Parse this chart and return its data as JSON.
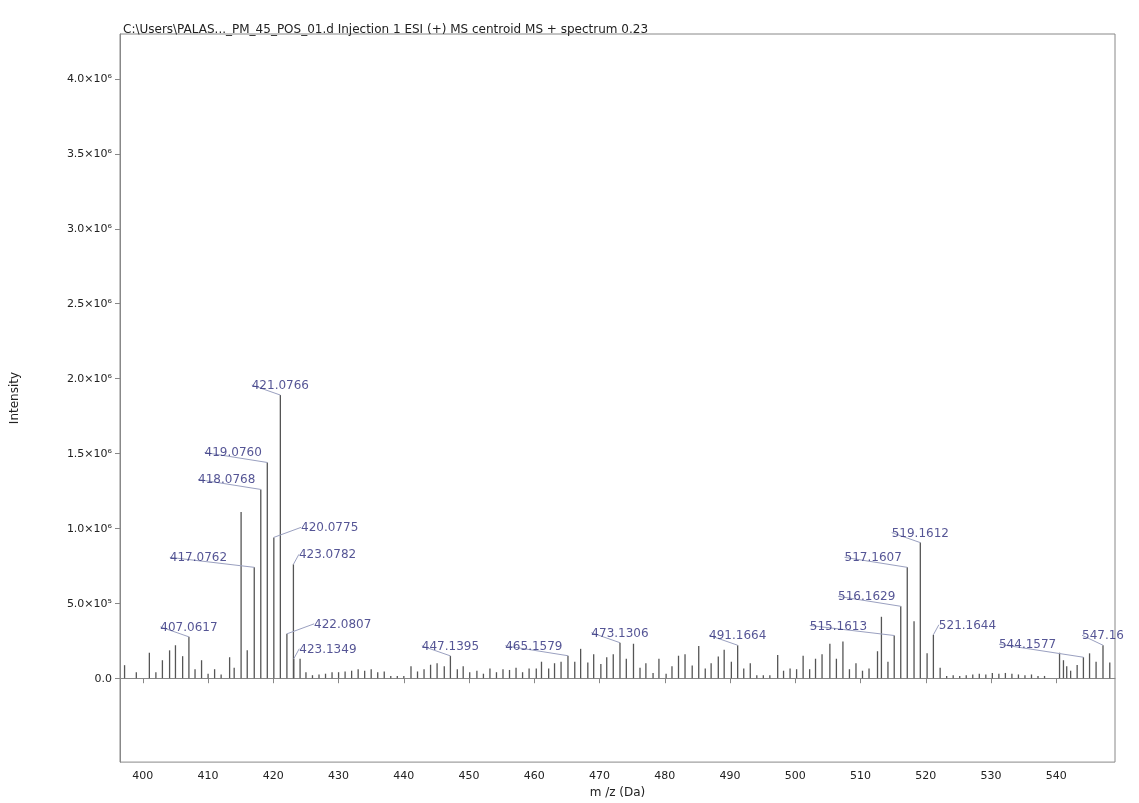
{
  "chart_data": {
    "type": "bar",
    "title": "C:\\Users\\PALAS..._PM_45_POS_01.d Injection 1 ESI (+) MS centroid MS + spectrum 0.23",
    "xlabel": "m /z (Da)",
    "ylabel": "Intensity",
    "x": [
      397.2,
      399,
      401,
      402,
      403,
      404.1,
      405,
      406.1,
      407.0617,
      408,
      409,
      410,
      411,
      412,
      413.3,
      414,
      415.06,
      416,
      417.0762,
      418.0768,
      419.076,
      420.0775,
      421.0766,
      422.0807,
      423.0782,
      423.1349,
      424.1,
      425,
      426,
      427,
      428,
      429,
      430,
      431,
      432,
      433,
      434,
      435,
      436,
      437,
      438,
      439,
      440,
      441.1,
      442.1,
      443.1,
      444.1,
      445.1,
      446.2,
      447.1395,
      448.2,
      449.1,
      450.1,
      451.2,
      452.2,
      453.2,
      454.2,
      455.2,
      456.2,
      457.2,
      458.2,
      459.2,
      460.3,
      461.1,
      462.2,
      463.1,
      464.1,
      465.1579,
      466.2,
      467.1,
      468.2,
      469.1,
      470.2,
      471.1,
      472.1,
      473.1306,
      474.1,
      475.2,
      476.2,
      477.1,
      478.2,
      479.1,
      480.2,
      481.1,
      482.1,
      483.1,
      484.2,
      485.2,
      486.2,
      487.1,
      488.2,
      489.1,
      490.2,
      491.1664,
      492.1,
      493.1,
      494.1,
      495.1,
      496.1,
      497.3,
      498.2,
      499.2,
      500.2,
      501.2,
      502.2,
      503.1,
      504.1,
      505.3,
      506.3,
      507.3,
      508.3,
      509.3,
      510.3,
      511.3,
      512.6,
      513.2,
      514.2,
      515.1613,
      516.1629,
      517.1607,
      518.2,
      519.1612,
      520.2,
      521.1644,
      522.2,
      523.2,
      524.2,
      525.2,
      526.2,
      527.2,
      528.2,
      529.2,
      530.2,
      531.2,
      532.2,
      533.2,
      534.2,
      535.2,
      536.2,
      537.2,
      538.2,
      540.5,
      541.1,
      541.6,
      542.2,
      543.2,
      544.1577,
      545.1,
      546.1,
      547.16,
      548.2
    ],
    "series": [
      {
        "color": "#555555",
        "values": [
          87000,
          40000,
          170000,
          40000,
          120000,
          186000,
          220000,
          147000,
          276000,
          60000,
          120000,
          30000,
          60000,
          25000,
          140000,
          70000,
          1110000,
          186000,
          740000,
          1260000,
          1440000,
          940000,
          1890000,
          296000,
          760000,
          130000,
          130000,
          40000,
          20000,
          25000,
          30000,
          40000,
          40000,
          45000,
          50000,
          60000,
          50000,
          60000,
          40000,
          45000,
          15000,
          15000,
          15000,
          80000,
          45000,
          60000,
          90000,
          100000,
          80000,
          149000,
          60000,
          80000,
          40000,
          50000,
          30000,
          65000,
          40000,
          60000,
          55000,
          70000,
          40000,
          65000,
          65000,
          110000,
          65000,
          100000,
          110000,
          150000,
          110000,
          196000,
          105000,
          160000,
          95000,
          140000,
          160000,
          237000,
          130000,
          230000,
          70000,
          100000,
          35000,
          130000,
          30000,
          80000,
          150000,
          160000,
          85000,
          215000,
          65000,
          100000,
          145000,
          190000,
          110000,
          220000,
          65000,
          100000,
          20000,
          20000,
          20000,
          155000,
          50000,
          65000,
          60000,
          150000,
          60000,
          130000,
          160000,
          230000,
          130000,
          245000,
          60000,
          100000,
          50000,
          65000,
          180000,
          410000,
          110000,
          285000,
          480000,
          740000,
          380000,
          905000,
          166000,
          290000,
          70000,
          15000,
          20000,
          15000,
          20000,
          25000,
          30000,
          25000,
          35000,
          30000,
          35000,
          30000,
          25000,
          20000,
          25000,
          15000,
          15000,
          170000,
          120000,
          80000,
          50000,
          88000,
          140000,
          166000,
          110000,
          220000,
          105000
        ]
      }
    ],
    "xlim": [
      396.5,
      549
    ],
    "xticks": [
      400,
      410,
      420,
      430,
      440,
      450,
      460,
      470,
      480,
      490,
      500,
      510,
      520,
      530,
      540
    ],
    "ylim": [
      -560000,
      4300000
    ],
    "yticks": [
      {
        "value": 0,
        "label": "0.0"
      },
      {
        "value": 500000,
        "label": "5.0×10⁵"
      },
      {
        "value": 1000000,
        "label": "1.0×10⁶"
      },
      {
        "value": 1500000,
        "label": "1.5×10⁶"
      },
      {
        "value": 2000000,
        "label": "2.0×10⁶"
      },
      {
        "value": 2500000,
        "label": "2.5×10⁶"
      },
      {
        "value": 3000000,
        "label": "3.0×10⁶"
      },
      {
        "value": 3500000,
        "label": "3.5×10⁶"
      },
      {
        "value": 4000000,
        "label": "4.0×10⁶"
      }
    ],
    "annotations": [
      {
        "text": "407.0617",
        "x": 407.0617,
        "y": 276000
      },
      {
        "text": "417.0762",
        "x": 417.0762,
        "y": 740000
      },
      {
        "text": "418.0768",
        "x": 418.0768,
        "y": 1260000
      },
      {
        "text": "419.0760",
        "x": 419.076,
        "y": 1440000
      },
      {
        "text": "420.0775",
        "x": 420.0775,
        "y": 940000
      },
      {
        "text": "421.0766",
        "x": 421.0766,
        "y": 1890000
      },
      {
        "text": "422.0807",
        "x": 422.0807,
        "y": 296000
      },
      {
        "text": "423.0782",
        "x": 423.0782,
        "y": 760000
      },
      {
        "text": "423.1349",
        "x": 423.1349,
        "y": 130000
      },
      {
        "text": "447.1395",
        "x": 447.1395,
        "y": 149000
      },
      {
        "text": "465.1579",
        "x": 465.1579,
        "y": 150000
      },
      {
        "text": "473.1306",
        "x": 473.1306,
        "y": 237000
      },
      {
        "text": "491.1664",
        "x": 491.1664,
        "y": 220000
      },
      {
        "text": "515.1613",
        "x": 515.1613,
        "y": 285000
      },
      {
        "text": "516.1629",
        "x": 516.1629,
        "y": 480000
      },
      {
        "text": "517.1607",
        "x": 517.1607,
        "y": 740000
      },
      {
        "text": "519.1612",
        "x": 519.1612,
        "y": 905000
      },
      {
        "text": "521.1644",
        "x": 521.1644,
        "y": 290000
      },
      {
        "text": "544.1577",
        "x": 544.1577,
        "y": 140000
      },
      {
        "text": "547.16",
        "x": 547.16,
        "y": 220000
      }
    ],
    "tick_labels": "xy"
  }
}
